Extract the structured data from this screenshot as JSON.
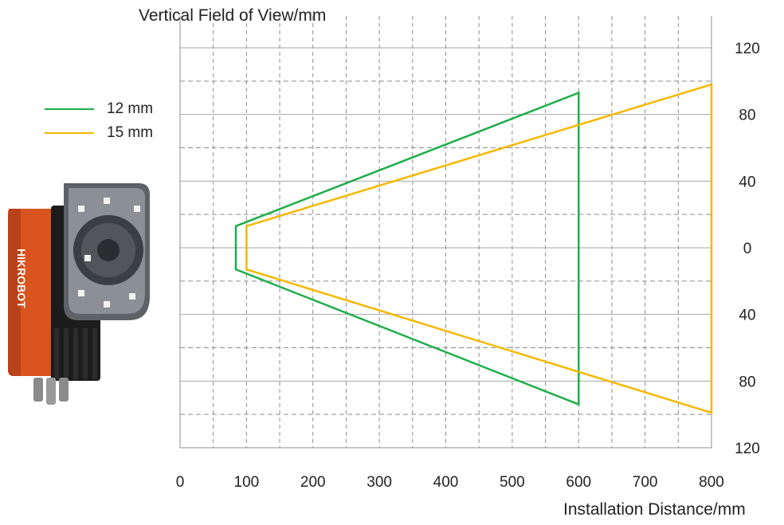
{
  "chart_data": {
    "type": "line",
    "title": "",
    "xlabel": "Installation Distance/mm",
    "ylabel": "Vertical Field of View/mm",
    "xlim": [
      0,
      800
    ],
    "ylim": [
      -120,
      120
    ],
    "x_ticks": [
      0,
      100,
      200,
      300,
      400,
      500,
      600,
      700,
      800
    ],
    "x_tick_labels": [
      "0",
      "100",
      "200",
      "300",
      "400",
      "500",
      "600",
      "700",
      "800"
    ],
    "y_ticks": [
      120,
      80,
      40,
      0,
      -40,
      -80,
      -120
    ],
    "y_tick_labels": [
      "120",
      "80",
      "40",
      "0",
      "40",
      "80",
      "120"
    ],
    "grid": true,
    "legend_position": "left",
    "series": [
      {
        "name": "12 mm",
        "color": "#1fae4b",
        "points": [
          [
            84,
            13
          ],
          [
            600,
            93
          ],
          [
            600,
            -94
          ],
          [
            84,
            -13
          ]
        ]
      },
      {
        "name": "15 mm",
        "color": "#f5b800",
        "points": [
          [
            100,
            13
          ],
          [
            800,
            98
          ],
          [
            800,
            -99
          ],
          [
            100,
            -13
          ]
        ]
      }
    ]
  },
  "product": {
    "brand": "HIKROBOT"
  }
}
